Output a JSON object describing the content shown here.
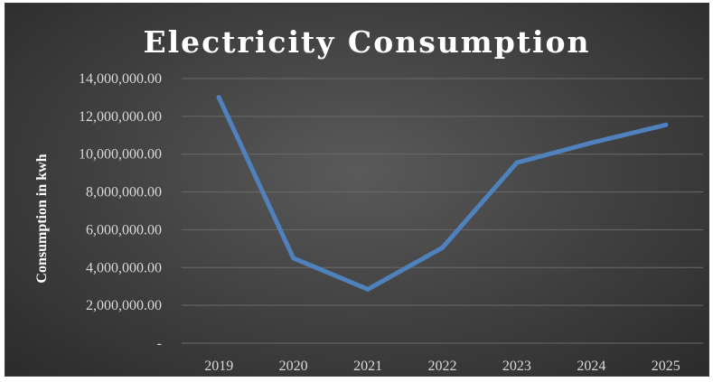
{
  "chart_data": {
    "type": "line",
    "title": "Electricity Consumption",
    "xlabel": "",
    "ylabel": "Consumption in kwh",
    "categories": [
      "2019",
      "2020",
      "2021",
      "2022",
      "2023",
      "2024",
      "2025"
    ],
    "series": [
      {
        "values": [
          13000000,
          4500000,
          2850000,
          5050000,
          9550000,
          10600000,
          11550000
        ]
      }
    ],
    "ylim": [
      0,
      14000000
    ],
    "yticks": [
      0,
      2000000,
      4000000,
      6000000,
      8000000,
      10000000,
      12000000,
      14000000
    ],
    "ytick_labels": [
      "-",
      "2,000,000.00",
      "4,000,000.00",
      "6,000,000.00",
      "8,000,000.00",
      "10,000,000.00",
      "12,000,000.00",
      "14,000,000.00"
    ],
    "grid": true,
    "legend": "none",
    "colors": {
      "series": "#4f81bd",
      "background": "#3f3f3f",
      "grid": "#6a6a6a",
      "text": "#d9d9d9"
    }
  }
}
